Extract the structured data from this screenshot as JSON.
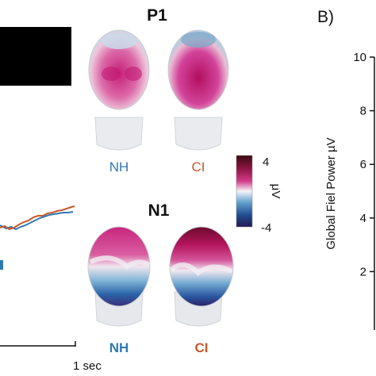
{
  "panel_b_label": "B)",
  "colors": {
    "nh": "#2f79b5",
    "ci": "#c8582a",
    "text": "#111111"
  },
  "topo": {
    "p1_title": "P1",
    "n1_title": "N1",
    "p1_labels": {
      "nh": "NH",
      "ci": "CI"
    },
    "n1_labels": {
      "nh": "NH",
      "ci": "CI"
    }
  },
  "colorbar": {
    "max_label": "4",
    "min_label": "-4",
    "unit_label": "μV"
  },
  "left_panel": {
    "time_scale_label": "1 sec"
  },
  "chart_data": {
    "type": "line",
    "ylabel": "Global Fiel Power µV",
    "ylim": [
      0,
      10
    ],
    "yticks": [
      "2",
      "4",
      "6",
      "8",
      "10"
    ]
  }
}
